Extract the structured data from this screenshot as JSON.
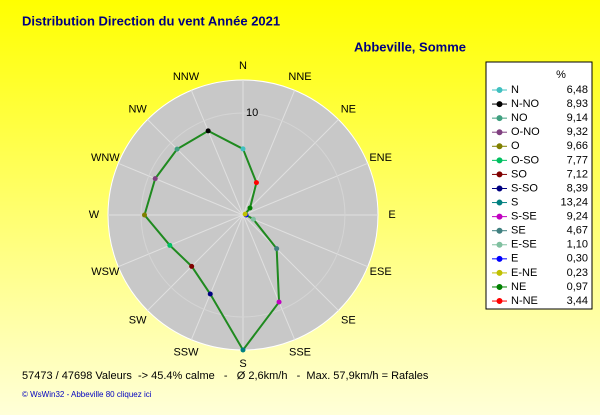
{
  "chart_data": {
    "type": "radar",
    "title": "Distribution Direction du vent   Année 2021",
    "subtitle": "Abbeville, Somme",
    "axis_labels": [
      "N",
      "NNW",
      "NW",
      "WNW",
      "W",
      "WSW",
      "SW",
      "SSW",
      "S",
      "SSE",
      "SE",
      "ESE",
      "E",
      "ENE",
      "NE",
      "NNE"
    ],
    "legend_header": "%",
    "categories": [
      "N",
      "N-NO",
      "NO",
      "O-NO",
      "O",
      "O-SO",
      "SO",
      "S-SO",
      "S",
      "S-SE",
      "SE",
      "E-SE",
      "E",
      "E-NE",
      "NE",
      "N-NE"
    ],
    "values": [
      6.48,
      8.93,
      9.14,
      9.32,
      9.66,
      7.77,
      7.12,
      8.39,
      13.24,
      9.24,
      4.67,
      1.1,
      0.3,
      0.23,
      0.97,
      3.44
    ],
    "value_labels": [
      "6,48",
      "8,93",
      "9,14",
      "9,32",
      "9,66",
      "7,77",
      "7,12",
      "8,39",
      "13,24",
      "9,24",
      "4,67",
      "1,10",
      "0,30",
      "0,23",
      "0,97",
      "3,44"
    ],
    "colors": [
      "#40c0c0",
      "#000000",
      "#40a080",
      "#804080",
      "#808000",
      "#00c060",
      "#800000",
      "#000080",
      "#008080",
      "#c000c0",
      "#408080",
      "#80c0a0",
      "#0000ff",
      "#c0c000",
      "#008000",
      "#ff0000"
    ],
    "line_color": "#1f8a1f",
    "ylim": [
      0,
      13.24
    ],
    "yticks": [
      10
    ],
    "footer": "57473 / 47698 Valeurs  -> 45.4% calme   -   Ø 2,6km/h   -  Max. 57,9km/h = Rafales",
    "credit": "© WsWin32  -  Abbeville 80 cliquez ici"
  }
}
